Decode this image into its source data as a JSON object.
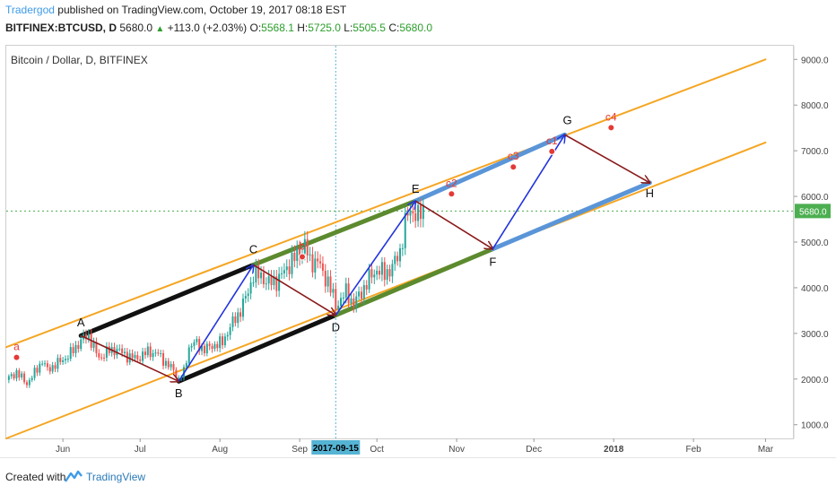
{
  "header": {
    "author": "Tradergod",
    "published": "published on TradingView.com, October 19, 2017 08:18 EST",
    "symbol": "BITFINEX:BTCUSD, D",
    "price": "5680.0",
    "change": "+113.0 (+2.03%)",
    "o_label": "O:",
    "o_value": "5568.1",
    "h_label": "H:",
    "h_value": "5725.0",
    "l_label": "L:",
    "l_value": "5505.5",
    "c_label": "C:",
    "c_value": "5680.0"
  },
  "footer": {
    "created": "Created with",
    "brand": "TradingView"
  },
  "colors": {
    "up": "#26a69a",
    "down": "#ef5350",
    "orange": "#f5a623",
    "green": "#5c8a2e",
    "blue": "#5a95d8",
    "black": "#111111",
    "arrow_blue": "#2233dd",
    "arrow_red": "#8b1a1a",
    "label_red": "#e53935",
    "price_tag": "#4caf50",
    "crosshair": "#56b4d3"
  },
  "chart_data": {
    "type": "candlestick",
    "title": "Bitcoin / Dollar, D, BITFINEX",
    "ylim": [
      700,
      9300
    ],
    "y_ticks": [
      "1000.0",
      "2000.0",
      "3000.0",
      "4000.0",
      "5000.0",
      "6000.0",
      "7000.0",
      "8000.0",
      "9000.0"
    ],
    "x_ticks": [
      {
        "label": "Jun",
        "date": "2017-06-01"
      },
      {
        "label": "Jul",
        "date": "2017-07-01"
      },
      {
        "label": "Aug",
        "date": "2017-08-01"
      },
      {
        "label": "Sep",
        "date": "2017-09-01"
      },
      {
        "label": "Oct",
        "date": "2017-10-01"
      },
      {
        "label": "Nov",
        "date": "2017-11-01"
      },
      {
        "label": "Dec",
        "date": "2017-12-01"
      },
      {
        "label": "2018",
        "date": "2018-01-01"
      },
      {
        "label": "Feb",
        "date": "2018-02-01"
      },
      {
        "label": "Mar",
        "date": "2018-03-01"
      }
    ],
    "xlim": [
      "2017-05-10",
      "2018-03-12"
    ],
    "crosshair": {
      "date": "2017-09-15",
      "label": "2017-09-15"
    },
    "last_price": {
      "value": 5680.0,
      "label": "5680.0"
    },
    "price_path": [
      [
        "2017-05-10",
        1980
      ],
      [
        "2017-05-14",
        2150
      ],
      [
        "2017-05-18",
        1900
      ],
      [
        "2017-05-20",
        2050
      ],
      [
        "2017-05-24",
        2400
      ],
      [
        "2017-05-26",
        2200
      ],
      [
        "2017-05-30",
        2350
      ],
      [
        "2017-06-03",
        2500
      ],
      [
        "2017-06-06",
        2700
      ],
      [
        "2017-06-09",
        2900
      ],
      [
        "2017-06-11",
        2950
      ],
      [
        "2017-06-13",
        2700
      ],
      [
        "2017-06-15",
        2450
      ],
      [
        "2017-06-18",
        2600
      ],
      [
        "2017-06-22",
        2650
      ],
      [
        "2017-06-26",
        2500
      ],
      [
        "2017-06-30",
        2450
      ],
      [
        "2017-07-04",
        2600
      ],
      [
        "2017-07-08",
        2550
      ],
      [
        "2017-07-11",
        2350
      ],
      [
        "2017-07-14",
        2200
      ],
      [
        "2017-07-16",
        2000
      ],
      [
        "2017-07-18",
        2150
      ],
      [
        "2017-07-20",
        2700
      ],
      [
        "2017-07-22",
        2800
      ],
      [
        "2017-07-26",
        2650
      ],
      [
        "2017-07-30",
        2750
      ],
      [
        "2017-08-02",
        2800
      ],
      [
        "2017-08-05",
        3150
      ],
      [
        "2017-08-08",
        3400
      ],
      [
        "2017-08-12",
        3900
      ],
      [
        "2017-08-14",
        4300
      ],
      [
        "2017-08-17",
        4250
      ],
      [
        "2017-08-20",
        4100
      ],
      [
        "2017-08-23",
        4150
      ],
      [
        "2017-08-26",
        4350
      ],
      [
        "2017-08-29",
        4600
      ],
      [
        "2017-09-01",
        4750
      ],
      [
        "2017-09-03",
        4950
      ],
      [
        "2017-09-05",
        4550
      ],
      [
        "2017-09-08",
        4600
      ],
      [
        "2017-09-10",
        4300
      ],
      [
        "2017-09-12",
        4150
      ],
      [
        "2017-09-14",
        3800
      ],
      [
        "2017-09-15",
        3600
      ],
      [
        "2017-09-17",
        3750
      ],
      [
        "2017-09-19",
        3900
      ],
      [
        "2017-09-22",
        3650
      ],
      [
        "2017-09-25",
        3900
      ],
      [
        "2017-09-28",
        4200
      ],
      [
        "2017-10-01",
        4400
      ],
      [
        "2017-10-04",
        4300
      ],
      [
        "2017-10-07",
        4450
      ],
      [
        "2017-10-10",
        4800
      ],
      [
        "2017-10-12",
        5400
      ],
      [
        "2017-10-13",
        5600
      ],
      [
        "2017-10-15",
        5700
      ],
      [
        "2017-10-17",
        5550
      ],
      [
        "2017-10-19",
        5680
      ]
    ],
    "channels": [
      {
        "color": "orange",
        "width": 2,
        "from": [
          "2017-05-10",
          2700
        ],
        "to": [
          "2018-03-01",
          9000
        ]
      },
      {
        "color": "orange",
        "width": 2,
        "from": [
          "2017-05-10",
          700
        ],
        "to": [
          "2018-03-01",
          7180
        ]
      },
      {
        "color": "black",
        "width": 5,
        "from": [
          "2017-06-08",
          2950
        ],
        "to": [
          "2017-08-14",
          4500
        ]
      },
      {
        "color": "black",
        "width": 5,
        "from": [
          "2017-07-16",
          1950
        ],
        "to": [
          "2017-09-15",
          3400
        ]
      },
      {
        "color": "green",
        "width": 5,
        "from": [
          "2017-08-14",
          4500
        ],
        "to": [
          "2017-10-16",
          5900
        ]
      },
      {
        "color": "green",
        "width": 5,
        "from": [
          "2017-09-15",
          3400
        ],
        "to": [
          "2017-11-15",
          4850
        ]
      },
      {
        "color": "blue",
        "width": 5,
        "from": [
          "2017-10-16",
          5900
        ],
        "to": [
          "2017-12-13",
          7350
        ]
      },
      {
        "color": "blue",
        "width": 5,
        "from": [
          "2017-11-15",
          4850
        ],
        "to": [
          "2018-01-15",
          6300
        ]
      }
    ],
    "arrows": [
      {
        "color": "arrow_red",
        "from": [
          "2017-06-08",
          2950
        ],
        "to": [
          "2017-07-16",
          1950
        ]
      },
      {
        "color": "arrow_blue",
        "from": [
          "2017-07-16",
          1950
        ],
        "to": [
          "2017-08-14",
          4500
        ]
      },
      {
        "color": "arrow_red",
        "from": [
          "2017-08-14",
          4500
        ],
        "to": [
          "2017-09-15",
          3400
        ]
      },
      {
        "color": "arrow_blue",
        "from": [
          "2017-09-15",
          3400
        ],
        "to": [
          "2017-10-16",
          5900
        ]
      },
      {
        "color": "arrow_red",
        "from": [
          "2017-10-16",
          5900
        ],
        "to": [
          "2017-11-15",
          4850
        ]
      },
      {
        "color": "arrow_blue",
        "from": [
          "2017-11-15",
          4850
        ],
        "to": [
          "2017-12-13",
          7350
        ]
      },
      {
        "color": "arrow_red",
        "from": [
          "2017-12-13",
          7350
        ],
        "to": [
          "2018-01-15",
          6300
        ]
      }
    ],
    "point_labels": [
      {
        "text": "A",
        "date": "2017-06-08",
        "value": 3150
      },
      {
        "text": "B",
        "date": "2017-07-16",
        "value": 1600
      },
      {
        "text": "C",
        "date": "2017-08-14",
        "value": 4750
      },
      {
        "text": "D",
        "date": "2017-09-15",
        "value": 3050
      },
      {
        "text": "E",
        "date": "2017-10-16",
        "value": 6080
      },
      {
        "text": "F",
        "date": "2017-11-15",
        "value": 4480
      },
      {
        "text": "G",
        "date": "2017-12-14",
        "value": 7580
      },
      {
        "text": "H",
        "date": "2018-01-15",
        "value": 5980
      }
    ],
    "markers": [
      {
        "text": "a",
        "date": "2017-05-14",
        "value": 2750
      },
      {
        "text": "b",
        "date": "2017-09-02",
        "value": 4950
      },
      {
        "text": "c1",
        "date": "2017-12-08",
        "value": 7260
      },
      {
        "text": "c2",
        "date": "2017-10-30",
        "value": 6330
      },
      {
        "text": "c3",
        "date": "2017-11-23",
        "value": 6920
      },
      {
        "text": "c4",
        "date": "2017-12-31",
        "value": 7780
      }
    ]
  }
}
